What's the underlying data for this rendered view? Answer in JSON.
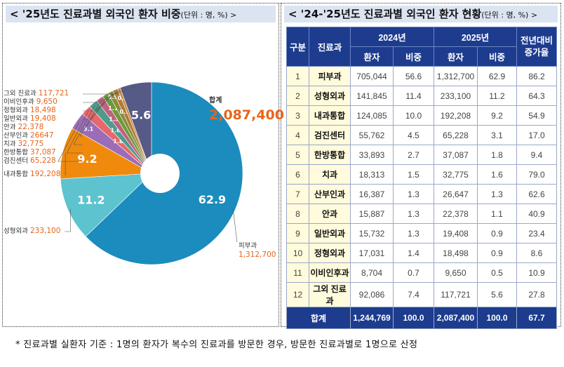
{
  "left": {
    "title": "< '25년도 진료과별 외국인 환자 비중",
    "unit": "(단위 : 명, %) >",
    "total_label": "합계",
    "total_value": "2,087,400"
  },
  "chart_data": {
    "type": "pie",
    "title": "'25년도 진료과별 외국인 환자 비중",
    "donut": true,
    "slices": [
      {
        "name": "피부과",
        "count": "1,312,700",
        "value": 62.9,
        "color": "#1b8cbd"
      },
      {
        "name": "성형외과",
        "count": "233,100",
        "value": 11.2,
        "color": "#5cc3cf"
      },
      {
        "name": "내과통합",
        "count": "192,208",
        "value": 9.2,
        "color": "#f08a0c"
      },
      {
        "name": "검진센터",
        "count": "65,228",
        "value": 3.1,
        "color": "#9b6db8"
      },
      {
        "name": "한방통합",
        "count": "37,087",
        "value": 1.8,
        "color": "#e8676a"
      },
      {
        "name": "치과",
        "count": "32,775",
        "value": 1.6,
        "color": "#4f9b8e"
      },
      {
        "name": "산부인과",
        "count": "26647",
        "value": 1.3,
        "color": "#c0627c"
      },
      {
        "name": "안과",
        "count": "22,378",
        "value": 1.1,
        "color": "#6c9a3b"
      },
      {
        "name": "일반외과",
        "count": "19,408",
        "value": 0.9,
        "color": "#8a8a3a"
      },
      {
        "name": "정형외과",
        "count": "18,498",
        "value": 0.9,
        "color": "#b07a3a"
      },
      {
        "name": "이비인후과",
        "count": "9,650",
        "value": 0.5,
        "color": "#c98b3d"
      },
      {
        "name": "그외 진료과",
        "count": "117,721",
        "value": 5.6,
        "color": "#565a86"
      }
    ]
  },
  "right": {
    "title": "< '24-'25년도 진료과별 외국인 환자 현황",
    "unit": "(단위 : 명, %) >",
    "headers": {
      "no": "구분",
      "dept": "진료과",
      "y2024": "2024년",
      "y2025": "2025년",
      "pat": "환자",
      "ratio": "비중",
      "growth1": "전년대비",
      "growth2": "증가율"
    },
    "rows": [
      [
        "1",
        "피부과",
        "705,044",
        "56.6",
        "1,312,700",
        "62.9",
        "86.2"
      ],
      [
        "2",
        "성형외과",
        "141,845",
        "11.4",
        "233,100",
        "11.2",
        "64.3"
      ],
      [
        "3",
        "내과통합",
        "124,085",
        "10.0",
        "192,208",
        "9.2",
        "54.9"
      ],
      [
        "4",
        "검진센터",
        "55,762",
        "4.5",
        "65,228",
        "3.1",
        "17.0"
      ],
      [
        "5",
        "한방통합",
        "33,893",
        "2.7",
        "37,087",
        "1.8",
        "9.4"
      ],
      [
        "6",
        "치과",
        "18,313",
        "1.5",
        "32,775",
        "1.6",
        "79.0"
      ],
      [
        "7",
        "산부인과",
        "16,387",
        "1.3",
        "26,647",
        "1.3",
        "62.6"
      ],
      [
        "8",
        "안과",
        "15,887",
        "1.3",
        "22,378",
        "1.1",
        "40.9"
      ],
      [
        "9",
        "일반외과",
        "15,732",
        "1.3",
        "19,408",
        "0.9",
        "23.4"
      ],
      [
        "10",
        "정형외과",
        "17,031",
        "1.4",
        "18,498",
        "0.9",
        "8.6"
      ],
      [
        "11",
        "이비인후과",
        "8,704",
        "0.7",
        "9,650",
        "0.5",
        "10.9"
      ],
      [
        "12",
        "그외 진료과",
        "92,086",
        "7.4",
        "117,721",
        "5.6",
        "27.8"
      ]
    ],
    "total": [
      "합계",
      "1,244,769",
      "100.0",
      "2,087,400",
      "100.0",
      "67.7"
    ]
  },
  "footnote": "* 진료과별 실환자 기준 : 1명의 환자가 복수의 진료과를 방문한 경우, 방문한 진료과별로 1명으로 산정"
}
